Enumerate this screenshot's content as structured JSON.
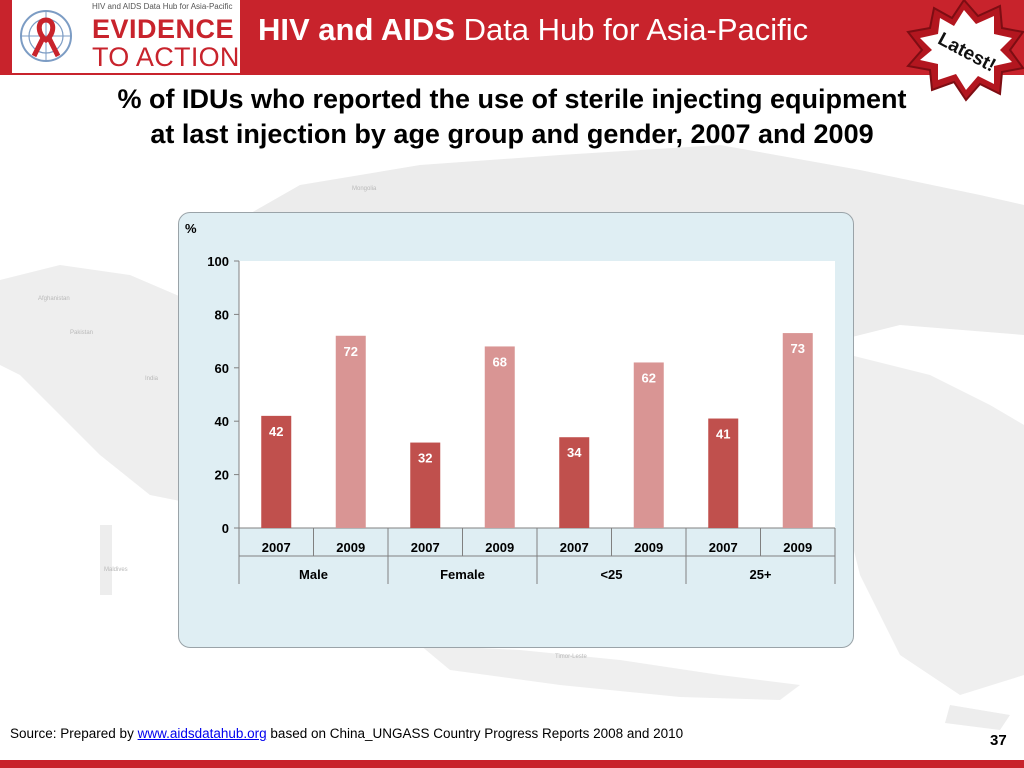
{
  "header": {
    "logo_tagline": "HIV and AIDS Data Hub for Asia-Pacific",
    "logo_line1": "EVIDENCE",
    "logo_line2": "TO ACTION",
    "title_bold": "HIV and AIDS",
    "title_rest": "Data Hub for Asia-Pacific",
    "badge": "Latest!"
  },
  "map_labels": [
    "Mongolia",
    "Afghanistan",
    "Pakistan",
    "India",
    "Maldives",
    "Timor-Leste"
  ],
  "slide_title_line1": "% of IDUs who reported the use of sterile injecting equipment",
  "slide_title_line2": "at last injection by age group and gender, 2007 and 2009",
  "chart_data": {
    "type": "bar",
    "ylabel": "%",
    "ylim": [
      0,
      100
    ],
    "yticks": [
      0,
      20,
      40,
      60,
      80,
      100
    ],
    "categories": [
      {
        "group": "Male",
        "year": "2007",
        "value": 42
      },
      {
        "group": "Male",
        "year": "2009",
        "value": 72
      },
      {
        "group": "Female",
        "year": "2007",
        "value": 32
      },
      {
        "group": "Female",
        "year": "2009",
        "value": 68
      },
      {
        "group": "<25",
        "year": "2007",
        "value": 34
      },
      {
        "group": "<25",
        "year": "2009",
        "value": 62
      },
      {
        "group": "25+",
        "year": "2007",
        "value": 41
      },
      {
        "group": "25+",
        "year": "2009",
        "value": 73
      }
    ],
    "groups": [
      "Male",
      "Female",
      "<25",
      "25+"
    ],
    "colors": {
      "2007": "#c0504d",
      "2009": "#d99594"
    },
    "data_labels": true,
    "grid": false
  },
  "source": {
    "prefix": "Source: Prepared by ",
    "link": "www.aidsdatahub.org",
    "suffix": "  based on China_UNGASS Country Progress Reports 2008 and 2010"
  },
  "page_number": "37"
}
